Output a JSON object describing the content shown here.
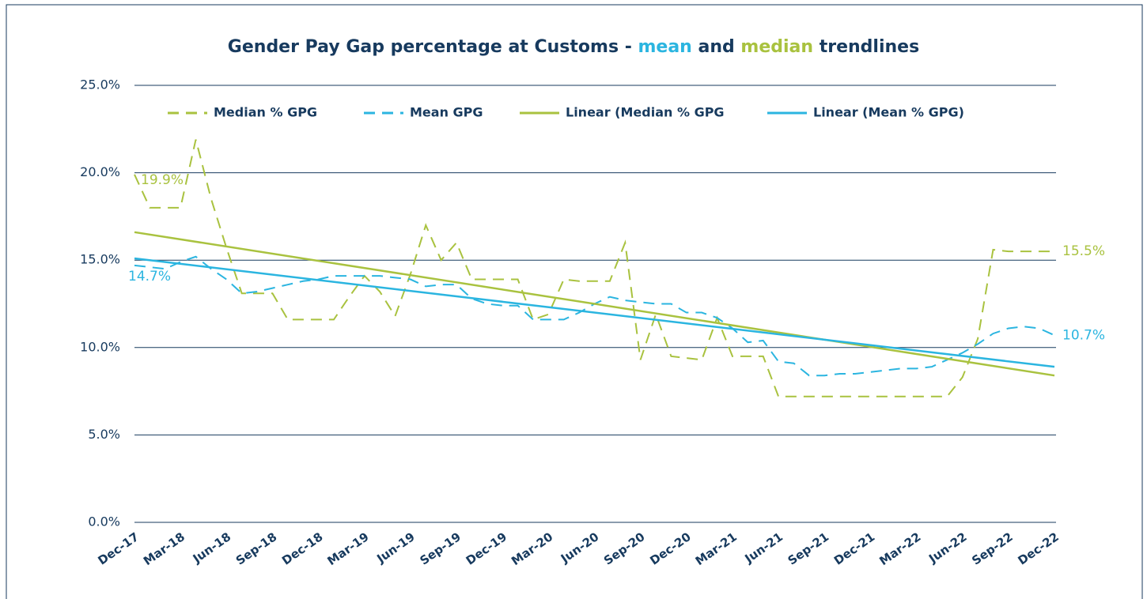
{
  "chart_data": {
    "type": "line",
    "title": [
      "Gender Pay Gap percentage at Customs - ",
      "mean",
      " and ",
      "median",
      " trendlines"
    ],
    "title_colors": [
      "#173a5e",
      "#2bb5e0",
      "#173a5e",
      "#a9c23f",
      "#173a5e"
    ],
    "categories": [
      "Dec-17",
      null,
      null,
      "Mar-18",
      null,
      null,
      "Jun-18",
      null,
      null,
      "Sep-18",
      null,
      null,
      "Dec-18",
      null,
      null,
      "Mar-19",
      null,
      null,
      "Jun-19",
      null,
      null,
      "Sep-19",
      null,
      null,
      "Dec-19",
      null,
      null,
      "Mar-20",
      null,
      null,
      "Jun-20",
      null,
      null,
      "Sep-20",
      null,
      null,
      "Dec-20",
      null,
      null,
      "Mar-21",
      null,
      null,
      "Jun-21",
      null,
      null,
      "Sep-21",
      null,
      null,
      "Dec-21",
      null,
      null,
      "Mar-22",
      null,
      null,
      "Jun-22",
      null,
      null,
      "Sep-22",
      null,
      null,
      "Dec-22"
    ],
    "ylim": [
      0,
      25
    ],
    "yticks": [
      {
        "value": 0,
        "label": "0.0%"
      },
      {
        "value": 5,
        "label": "5.0%"
      },
      {
        "value": 10,
        "label": "10.0%"
      },
      {
        "value": 15,
        "label": "15.0%"
      },
      {
        "value": 20,
        "label": "20.0%"
      },
      {
        "value": 25,
        "label": "25.0%"
      }
    ],
    "grid": true,
    "legend": "top",
    "series": [
      {
        "name": "Median % GPG",
        "color": "#a9c23f",
        "dash": true,
        "values": [
          19.9,
          18.0,
          18.0,
          18.0,
          21.9,
          18.5,
          15.7,
          13.1,
          13.1,
          13.1,
          11.6,
          11.6,
          11.6,
          11.6,
          12.9,
          14.1,
          13.2,
          11.8,
          14.2,
          17.0,
          15.0,
          16.0,
          13.9,
          13.9,
          13.9,
          13.9,
          11.6,
          11.9,
          13.9,
          13.8,
          13.8,
          13.8,
          16.0,
          9.3,
          11.9,
          9.5,
          9.4,
          9.3,
          11.7,
          9.5,
          9.5,
          9.5,
          7.2,
          7.2,
          7.2,
          7.2,
          7.2,
          7.2,
          7.2,
          7.2,
          7.2,
          7.2,
          7.2,
          7.2,
          8.3,
          10.5,
          15.6,
          15.5,
          15.5,
          15.5,
          15.5
        ],
        "value_labels": [
          "19.9%",
          null,
          null,
          null,
          null,
          null,
          null,
          null,
          null,
          null,
          null,
          null,
          null,
          null,
          null,
          null,
          null,
          null,
          null,
          null,
          null,
          null,
          null,
          null,
          null,
          null,
          null,
          null,
          null,
          null,
          null,
          null,
          null,
          null,
          null,
          null,
          null,
          null,
          null,
          null,
          null,
          null,
          null,
          null,
          null,
          null,
          null,
          null,
          null,
          null,
          null,
          null,
          null,
          null,
          null,
          null,
          null,
          null,
          null,
          null,
          "15.5%"
        ]
      },
      {
        "name": "Mean GPG",
        "color": "#2bb5e0",
        "dash": true,
        "values": [
          14.7,
          14.6,
          14.5,
          14.9,
          15.2,
          14.5,
          13.9,
          13.1,
          13.2,
          13.4,
          13.6,
          13.8,
          13.9,
          14.1,
          14.1,
          14.1,
          14.1,
          14.0,
          13.9,
          13.5,
          13.6,
          13.6,
          12.8,
          12.5,
          12.4,
          12.4,
          11.6,
          11.6,
          11.6,
          12.0,
          12.5,
          12.9,
          12.7,
          12.6,
          12.5,
          12.5,
          12.0,
          12.0,
          11.7,
          11.1,
          10.3,
          10.4,
          9.2,
          9.1,
          8.4,
          8.4,
          8.5,
          8.5,
          8.6,
          8.7,
          8.8,
          8.8,
          8.9,
          9.3,
          9.7,
          10.2,
          10.8,
          11.1,
          11.2,
          11.1,
          10.7
        ],
        "value_labels": [
          "14.7%",
          null,
          null,
          null,
          null,
          null,
          null,
          null,
          null,
          null,
          null,
          null,
          null,
          null,
          null,
          null,
          null,
          null,
          null,
          null,
          null,
          null,
          null,
          null,
          null,
          null,
          null,
          null,
          null,
          null,
          null,
          null,
          null,
          null,
          null,
          null,
          null,
          null,
          null,
          null,
          null,
          null,
          null,
          null,
          null,
          null,
          null,
          null,
          null,
          null,
          null,
          null,
          null,
          null,
          null,
          null,
          null,
          null,
          null,
          null,
          "10.7%"
        ]
      },
      {
        "name": "Linear (Median % GPG",
        "color": "#a9c23f",
        "dash": false,
        "x": [
          "Dec-17",
          "Dec-22"
        ],
        "values": [
          16.6,
          8.4
        ]
      },
      {
        "name": "Linear (Mean % GPG)",
        "color": "#2bb5e0",
        "dash": false,
        "x": [
          "Dec-17",
          "Dec-22"
        ],
        "values": [
          15.1,
          8.9
        ]
      }
    ]
  }
}
